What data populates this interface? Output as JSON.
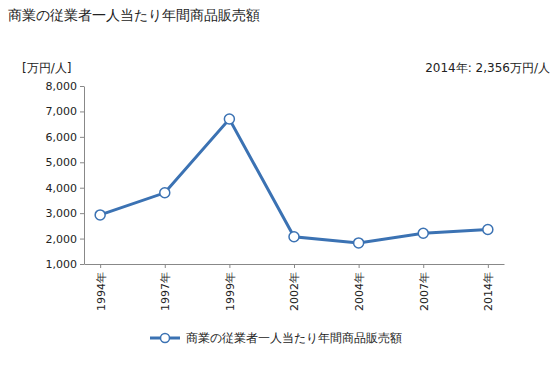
{
  "chart_data": {
    "type": "line",
    "title": "商業の従業者一人当たり年間商品販売額",
    "y_label": "[万円/人]",
    "annotations": [
      "2014年: 2,356万円/人"
    ],
    "categories": [
      "1994年",
      "1997年",
      "1999年",
      "2002年",
      "2004年",
      "2007年",
      "2014年"
    ],
    "series": [
      {
        "name": "商業の従業者一人当たり年間商品販売額",
        "color": "#3b72b3",
        "marker": "circle",
        "values": [
          2930,
          3800,
          6700,
          2070,
          1830,
          2210,
          2356
        ]
      }
    ],
    "ylim": [
      1000,
      8000
    ],
    "yticks": [
      {
        "value": 1000,
        "label": "1,000"
      },
      {
        "value": 2000,
        "label": "2,000"
      },
      {
        "value": 3000,
        "label": "3,000"
      },
      {
        "value": 4000,
        "label": "4,000"
      },
      {
        "value": 5000,
        "label": "5,000"
      },
      {
        "value": 6000,
        "label": "6,000"
      },
      {
        "value": 7000,
        "label": "7,000"
      },
      {
        "value": 8000,
        "label": "8,000"
      }
    ],
    "grid": false,
    "legend": "bottom"
  }
}
